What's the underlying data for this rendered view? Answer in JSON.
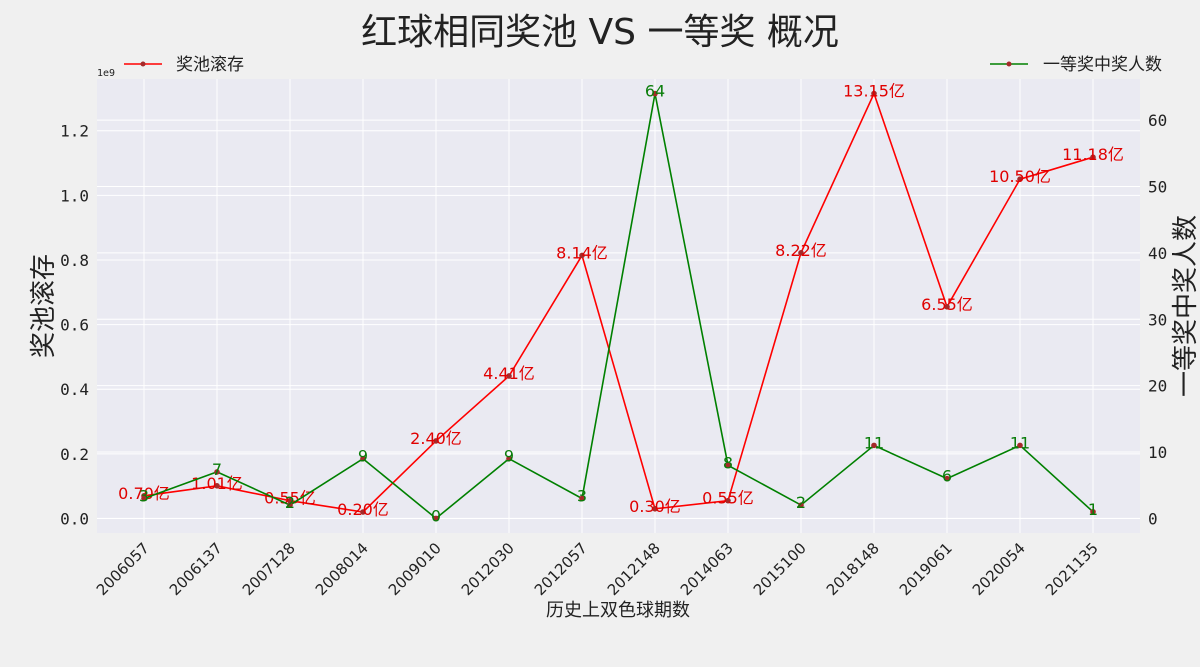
{
  "chart_data": {
    "type": "line",
    "title": "红球相同奖池 VS 一等奖 概况",
    "xlabel": "历史上双色球期数",
    "ylabel_left": "奖池滚存",
    "ylabel_right": "一等奖中奖人数",
    "left_offset_text": "1e9",
    "categories": [
      "2006057",
      "2006137",
      "2007128",
      "2008014",
      "2009010",
      "2012030",
      "2012057",
      "2012148",
      "2014063",
      "2015100",
      "2018148",
      "2019061",
      "2020054",
      "2021135"
    ],
    "series": [
      {
        "name": "奖池滚存",
        "axis": "left",
        "color": "#ff0000",
        "marker_color": "#a52a2a",
        "values": [
          0.07,
          0.101,
          0.055,
          0.02,
          0.24,
          0.441,
          0.814,
          0.03,
          0.055,
          0.822,
          1.315,
          0.655,
          1.05,
          1.118
        ],
        "labels": [
          "0.70亿",
          "1.01亿",
          "0.55亿",
          "0.20亿",
          "2.40亿",
          "4.41亿",
          "8.14亿",
          "0.30亿",
          "0.55亿",
          "8.22亿",
          "13.15亿",
          "6.55亿",
          "10.50亿",
          "11.18亿"
        ]
      },
      {
        "name": "一等奖中奖人数",
        "axis": "right",
        "color": "#008000",
        "marker_color": "#a52a2a",
        "values": [
          3,
          7,
          2,
          9,
          0,
          9,
          3,
          64,
          8,
          2,
          11,
          6,
          11,
          1
        ],
        "labels": [
          "3",
          "7",
          "2",
          "9",
          "0",
          "9",
          "3",
          "64",
          "8",
          "2",
          "11",
          "6",
          "11",
          "1"
        ]
      }
    ],
    "ylim_left": [
      -0.045,
      1.36
    ],
    "yticks_left": [
      0.0,
      0.2,
      0.4,
      0.6,
      0.8,
      1.0,
      1.2
    ],
    "yticks_left_labels": [
      "0.0",
      "0.2",
      "0.4",
      "0.6",
      "0.8",
      "1.0",
      "1.2"
    ],
    "ylim_right": [
      -2.2,
      66.2
    ],
    "yticks_right": [
      0,
      10,
      20,
      30,
      40,
      50,
      60
    ],
    "yticks_right_labels": [
      "0",
      "10",
      "20",
      "30",
      "40",
      "50",
      "60"
    ],
    "legend_left_placement": "top-left",
    "legend_right_placement": "top-right",
    "grid": true
  }
}
